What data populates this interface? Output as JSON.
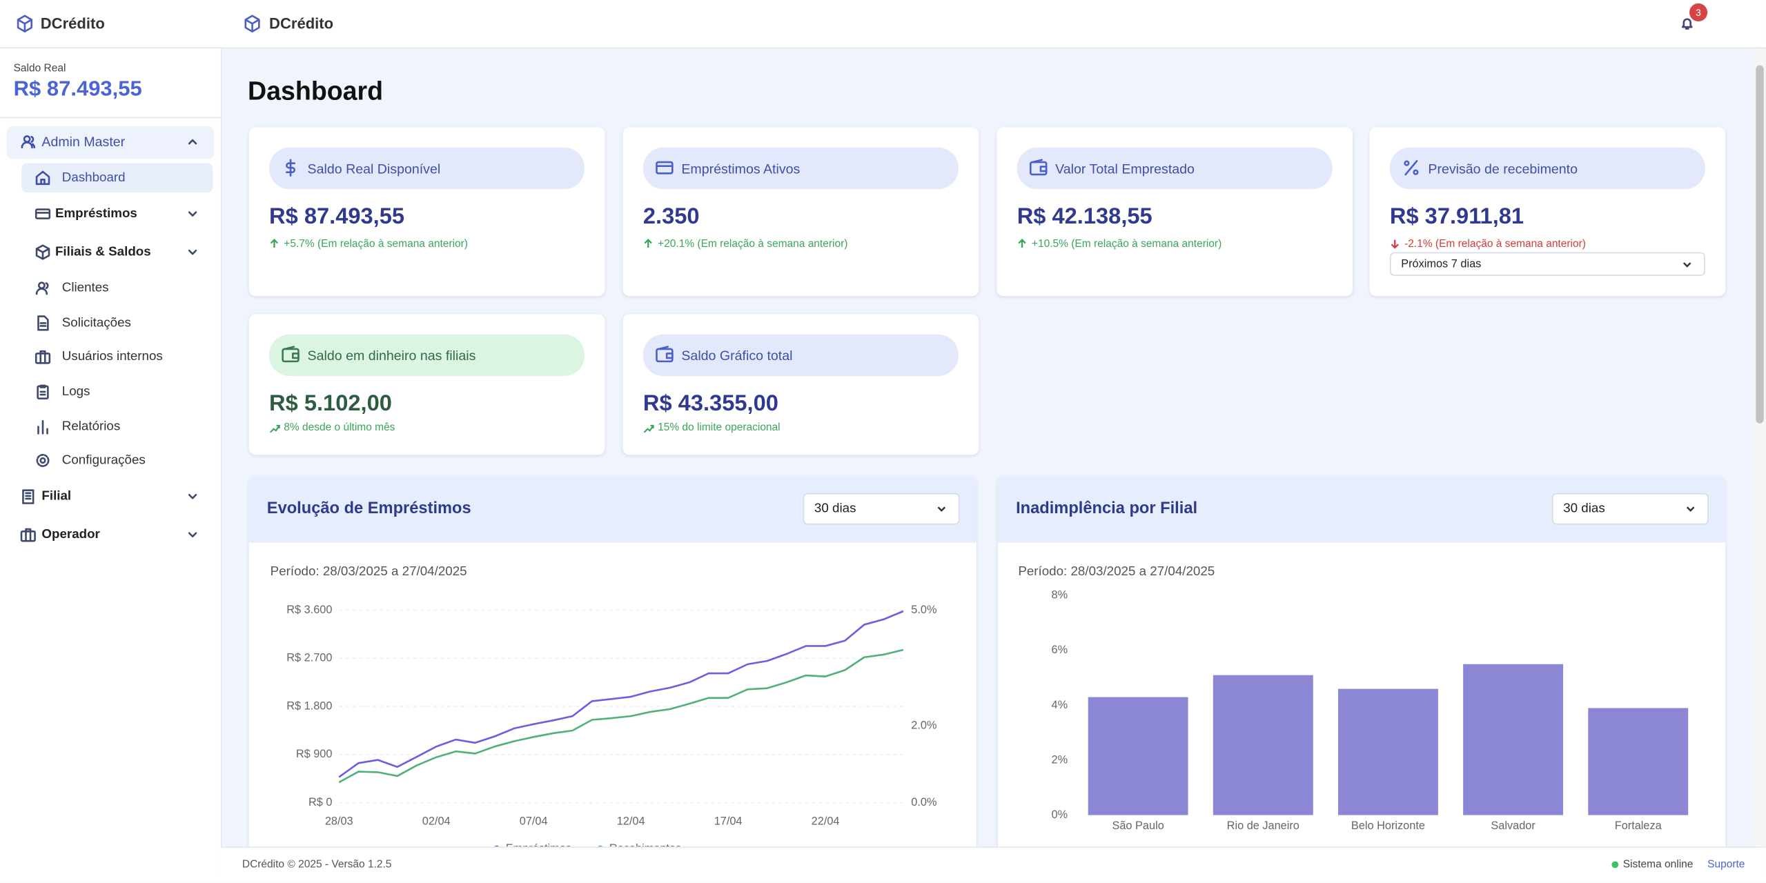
{
  "sidebar": {
    "brand": "DCrédito",
    "balance_label": "Saldo Real",
    "balance": "R$ 87.493,55",
    "group": "Admin Master",
    "items": [
      "Dashboard",
      "Empréstimos",
      "Filiais & Saldos",
      "Clientes",
      "Solicitações",
      "Usuários internos",
      "Logs",
      "Relatórios",
      "Configurações"
    ],
    "sections": [
      "Filial",
      "Operador"
    ]
  },
  "header": {
    "brand": "DCrédito",
    "notifications": 3
  },
  "page_title": "Dashboard",
  "cards": [
    {
      "title": "Saldo Real Disponível",
      "value": "R$ 87.493,55",
      "change": "+5.7% (Em relação à semana anterior)"
    },
    {
      "title": "Empréstimos Ativos",
      "value": "2.350",
      "change": "+20.1% (Em relação à semana anterior)"
    },
    {
      "title": "Valor Total Emprestado",
      "value": "R$ 42.138,55",
      "change": "+10.5% (Em relação à semana anterior)"
    },
    {
      "title": "Previsão de recebimento",
      "value": "R$ 37.911,81",
      "change": "-2.1% (Em relação à semana anterior)",
      "select": "Próximos 7 dias"
    },
    {
      "title": "Saldo em dinheiro nas filiais",
      "value": "R$ 5.102,00",
      "change": "8% desde o último mês"
    },
    {
      "title": "Saldo Gráfico total",
      "value": "R$ 43.355,00",
      "change": "15% do limite operacional"
    }
  ],
  "charts": [
    {
      "type": "line",
      "title": "Evolução de Empréstimos",
      "select": "30 dias",
      "period": "Período: 28/03/2025 a 27/04/2025",
      "categories": [
        "28/03",
        null,
        null,
        null,
        null,
        "02/04",
        null,
        null,
        null,
        null,
        "07/04",
        null,
        null,
        null,
        null,
        "12/04",
        null,
        null,
        null,
        null,
        "17/04",
        null,
        null,
        null,
        null,
        "22/04",
        null,
        null,
        null,
        null
      ],
      "series": [
        {
          "name": "Empréstimos",
          "color": "#6b5fe0",
          "values": [
            480,
            740,
            800,
            670,
            860,
            1050,
            1180,
            1120,
            1240,
            1390,
            1470,
            1540,
            1620,
            1900,
            1940,
            1980,
            2080,
            2150,
            2250,
            2420,
            2420,
            2590,
            2650,
            2780,
            2930,
            2930,
            3030,
            3330,
            3430,
            3580
          ]
        },
        {
          "name": "Recebimentos",
          "color": "#4fb07a",
          "values": [
            380,
            580,
            570,
            500,
            700,
            850,
            960,
            920,
            1050,
            1150,
            1230,
            1300,
            1350,
            1550,
            1580,
            1620,
            1700,
            1750,
            1850,
            1960,
            1960,
            2120,
            2140,
            2250,
            2380,
            2360,
            2480,
            2720,
            2770,
            2860
          ]
        }
      ],
      "ylim": [
        0,
        3600
      ],
      "yticks": [
        {
          "value": 0,
          "label": "R$ 0"
        },
        {
          "value": 900,
          "label": "R$ 900"
        },
        {
          "value": 1800,
          "label": "R$ 1.800"
        },
        {
          "value": 2700,
          "label": "R$ 2.700"
        },
        {
          "value": 3600,
          "label": "R$ 3.600"
        }
      ],
      "y2lim": [
        0,
        5
      ],
      "y2ticks": [
        {
          "value": 0,
          "label": "0.0%"
        },
        {
          "value": 2,
          "label": "2.0%"
        },
        {
          "value": 5,
          "label": "5.0%"
        }
      ],
      "grid": true
    },
    {
      "type": "bar",
      "title": "Inadimplência por Filial",
      "select": "30 dias",
      "period": "Período: 28/03/2025 a 27/04/2025",
      "categories": [
        "São Paulo",
        "Rio de Janeiro",
        "Belo Horizonte",
        "Salvador",
        "Fortaleza"
      ],
      "values": [
        4.3,
        5.1,
        4.6,
        5.5,
        3.9
      ],
      "color": "#8b87d4",
      "ylim": [
        0,
        8
      ],
      "yticks": [
        {
          "value": 0,
          "label": "0%"
        },
        {
          "value": 2,
          "label": "2%"
        },
        {
          "value": 4,
          "label": "4%"
        },
        {
          "value": 6,
          "label": "6%"
        },
        {
          "value": 8,
          "label": "8%"
        }
      ],
      "grid": false
    }
  ],
  "footer": {
    "text": "DCrédito © 2025 - Versão 1.2.5",
    "status": "Sistema online",
    "support": "Suporte"
  }
}
